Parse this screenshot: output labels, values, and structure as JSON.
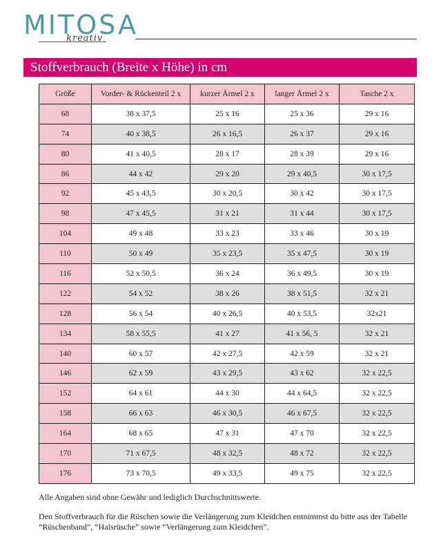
{
  "logo": {
    "main": "MITOSA",
    "sub": "kreativ"
  },
  "title": "Stoffverbrauch (Breite x Höhe) in cm",
  "table": {
    "headers": [
      "Größe",
      "Vorder- & Rückenteil 2 x",
      "kurzer Ärmel 2 x",
      "langer Ärmel 2 x",
      "Tasche 2 x"
    ],
    "rows": [
      [
        "68",
        "38 x 37,5",
        "25 x 16",
        "25 x 36",
        "29 x 16"
      ],
      [
        "74",
        "40 x 38,5",
        "26 x 16,5",
        "26 x 37",
        "29 x 16"
      ],
      [
        "80",
        "41 x 40,5",
        "28 x 17",
        "28 x 39",
        "29 x 16"
      ],
      [
        "86",
        "44 x 42",
        "29 x 20",
        "29 x 40,5",
        "30 x 17,5"
      ],
      [
        "92",
        "45 x 43,5",
        "30 x 20,5",
        "30 x 42",
        "30 x 17,5"
      ],
      [
        "98",
        "47 x 45,5",
        "31 x 21",
        "31 x 44",
        "30 x 17,5"
      ],
      [
        "104",
        "49 x 48",
        "33 x 23",
        "33 x 46",
        "30 x 19"
      ],
      [
        "110",
        "50 x 49",
        "35 x 23,5",
        "35 x 47,5",
        "30 x 19"
      ],
      [
        "116",
        "52 x 50,5",
        "36 x 24",
        "36 x 49,5",
        "30 x 19"
      ],
      [
        "122",
        "54 x 52",
        "38 x 26",
        "38 x 51,5",
        "32 x 21"
      ],
      [
        "128",
        "56 x 54",
        "40 x 26,5",
        "40 x 53,5",
        "32x21"
      ],
      [
        "134",
        "58 x 55,5",
        "41 x 27",
        "41 x 56, 5",
        "32 x 21"
      ],
      [
        "140",
        "60 x 57",
        "42 x 27,5",
        "42 x 59",
        "32 x 21"
      ],
      [
        "146",
        "62 x 59",
        "43 x 29,5",
        "43 x 62",
        "32 x 22,5"
      ],
      [
        "152",
        "64 x 61",
        "44 x 30",
        "44 x 64,5",
        "32 x 22,5"
      ],
      [
        "158",
        "66 x 63",
        "46 x 30,5",
        "46 x 67,5",
        "32 x 22,5"
      ],
      [
        "164",
        "68 x 65",
        "47 x 31",
        "47 x 70",
        "32 x 22,5"
      ],
      [
        "170",
        "71 x 67,5",
        "48 x 32,5",
        "48 x 72",
        "32 x 22,5"
      ],
      [
        "176",
        "73 x 70,5",
        "49 x 33,5",
        "49 x 75",
        "32 x 22,5"
      ]
    ]
  },
  "notes": {
    "disclaimer": "Alle Angaben sind ohne Gewähr und lediglich Durchschnittswerte.",
    "reference": "Den Stoffverbrauch für die Rüschen sowie die Verlängerung zum Kleidchen entnimmst du bitte aus der Tabelle “Rüschenband”, “Halsrüsche” sowie “Verlängerung zum Kleidchen”."
  },
  "colors": {
    "accent": "#d6006e",
    "size_column": "#f4c6d0",
    "row_alt": "#dedede",
    "logo": "#4a9a9e"
  }
}
